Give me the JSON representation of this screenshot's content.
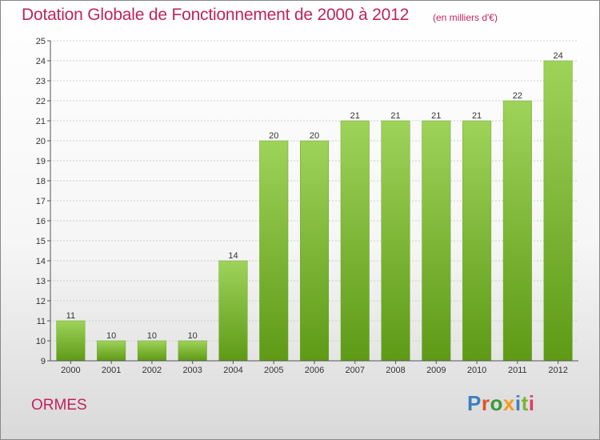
{
  "header": {
    "title": "Dotation Globale de Fonctionnement de 2000 à 2012",
    "unit": "(en milliers d'€)"
  },
  "footer": {
    "commune": "ORMES",
    "logo_text": "Proxiti"
  },
  "colors": {
    "title": "#c0245c",
    "bar_top": "#9ed35a",
    "bar_bottom": "#5e9a16",
    "grid": "#cccccc",
    "axis": "#555555",
    "logo_letters": [
      "#3c7fc4",
      "#e1522a",
      "#3a9a3a",
      "#f39a1e",
      "#3c7fc4",
      "#7ab530",
      "#e33b6a"
    ]
  },
  "chart_data": {
    "type": "bar",
    "title": "Dotation Globale de Fonctionnement de 2000 à 2012",
    "subtitle": "(en milliers d'€)",
    "xlabel": "",
    "ylabel": "",
    "categories": [
      "2000",
      "2001",
      "2002",
      "2003",
      "2004",
      "2005",
      "2006",
      "2007",
      "2008",
      "2009",
      "2010",
      "2011",
      "2012"
    ],
    "values": [
      11,
      10,
      10,
      10,
      14,
      20,
      20,
      21,
      21,
      21,
      21,
      22,
      24
    ],
    "ylim": [
      9,
      25
    ],
    "yticks": [
      9,
      10,
      11,
      12,
      13,
      14,
      15,
      16,
      17,
      18,
      19,
      20,
      21,
      22,
      23,
      24,
      25
    ],
    "grid": true,
    "data_labels": true,
    "legend": "none"
  }
}
